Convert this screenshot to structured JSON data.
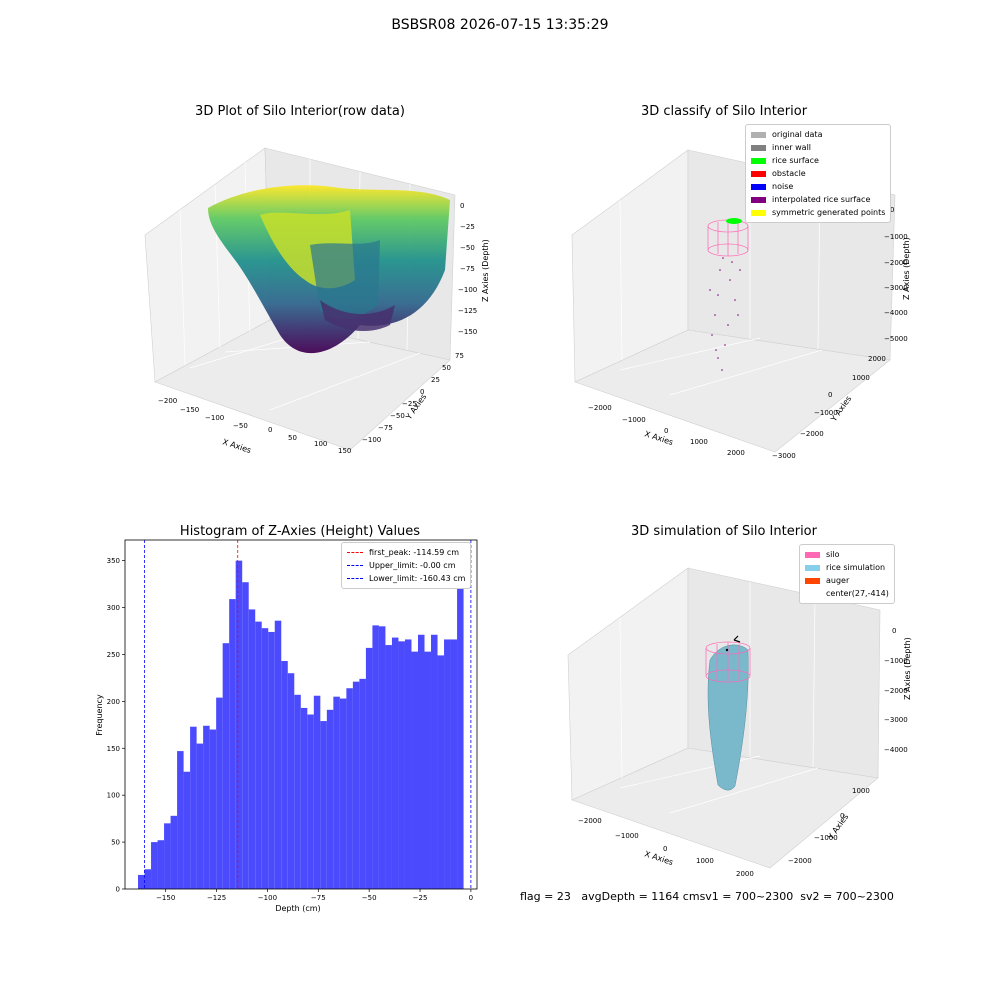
{
  "figure": {
    "suptitle": "BSBSR08 2026-07-15 13:35:29",
    "footer": {
      "flag": "flag = 23",
      "avg_depth": "avgDepth = 1164 cm",
      "sv1": "sv1 = 700~2300",
      "sv2": "sv2 = 700~2300"
    }
  },
  "chart_data": [
    {
      "id": "raw",
      "type": "scatter",
      "title": "3D Plot of Silo Interior(row data)",
      "xlabel": "X Axies",
      "ylabel": "Y Axies",
      "zlabel": "Z Axies (Depth)",
      "xticks": [
        "−200",
        "−150",
        "−100",
        "−50",
        "0",
        "50",
        "100",
        "150",
        "200"
      ],
      "yticks": [
        "75",
        "50",
        "25",
        "0",
        "−25",
        "−50",
        "−75",
        "−100"
      ],
      "zticks": [
        "0",
        "−25",
        "−50",
        "−75",
        "−100",
        "−125",
        "−150"
      ],
      "xlim": [
        -200,
        200
      ],
      "ylim": [
        -100,
        75
      ],
      "zlim": [
        -160,
        0
      ],
      "colormap": "viridis"
    },
    {
      "id": "classify",
      "type": "scatter",
      "title": "3D classify of Silo Interior",
      "xlabel": "X Axies",
      "ylabel": "Y Axies",
      "zlabel": "Z Axies (Depth)",
      "xticks": [
        "−2000",
        "−1000",
        "0",
        "1000",
        "2000"
      ],
      "yticks": [
        "2000",
        "1000",
        "0",
        "−1000",
        "−2000",
        "−3000"
      ],
      "zticks": [
        "0",
        "−1000",
        "−2000",
        "−3000",
        "−4000",
        "−5000"
      ],
      "legend": [
        {
          "label": "original data",
          "color": "#b0b0b0"
        },
        {
          "label": "inner wall",
          "color": "#808080"
        },
        {
          "label": "rice surface",
          "color": "#00ff00"
        },
        {
          "label": "obstacle",
          "color": "#ff0000"
        },
        {
          "label": "noise",
          "color": "#0000ff"
        },
        {
          "label": "interpolated rice surface",
          "color": "#800080"
        },
        {
          "label": "symmetric generated points",
          "color": "#ffff00"
        }
      ]
    },
    {
      "id": "hist",
      "type": "bar",
      "title": "Histogram of Z-Axies (Height) Values",
      "xlabel": "Depth (cm)",
      "ylabel": "Frequency",
      "bar_color": "#4b4bfd",
      "xlim": [
        -170,
        3
      ],
      "ylim": [
        0,
        372
      ],
      "xticks": [
        -150,
        -125,
        -100,
        -75,
        -50,
        -25,
        0
      ],
      "xtick_labels": [
        "−150",
        "−125",
        "−100",
        "−75",
        "−50",
        "−25",
        "0"
      ],
      "yticks": [
        0,
        50,
        100,
        150,
        200,
        250,
        300,
        350
      ],
      "yticks_labels": [
        "0",
        "50",
        "100",
        "150",
        "200",
        "250",
        "300",
        "350"
      ],
      "bin_start": -163.6,
      "bin_width": 3.2,
      "values": [
        15,
        21,
        50,
        52,
        70,
        78,
        147,
        125,
        173,
        155,
        174,
        170,
        204,
        262,
        309,
        350,
        327,
        298,
        285,
        278,
        274,
        286,
        243,
        230,
        207,
        193,
        186,
        206,
        179,
        191,
        205,
        203,
        214,
        221,
        224,
        257,
        281,
        280,
        260,
        268,
        264,
        266,
        253,
        271,
        253,
        271,
        249,
        266,
        266,
        350
      ],
      "lines": [
        {
          "label": "first_peak: -114.59 cm",
          "x": -114.59,
          "color": "#ff0000"
        },
        {
          "label": "Upper_limit: -0.00 cm",
          "x": -0.0,
          "color": "#0000ff"
        },
        {
          "label": "Lower_limit: -160.43 cm",
          "x": -160.43,
          "color": "#0000ff"
        }
      ]
    },
    {
      "id": "sim",
      "type": "scatter",
      "title": "3D simulation of Silo Interior",
      "xlabel": "X Axies",
      "ylabel": "Y Axies",
      "zlabel": "Z Axies (Depth)",
      "xticks": [
        "−2000",
        "−1000",
        "0",
        "1000",
        "2000"
      ],
      "yticks": [
        "1000",
        "0",
        "−1000",
        "−2000"
      ],
      "zticks": [
        "0",
        "−1000",
        "−2000",
        "−3000",
        "−4000"
      ],
      "legend": [
        {
          "label": "silo",
          "color": "#ff69b4"
        },
        {
          "label": "rice simulation",
          "color": "#87ceeb"
        },
        {
          "label": "auger",
          "color": "#ff4500"
        },
        {
          "label": "center(27,-414)",
          "color": ""
        }
      ]
    }
  ]
}
